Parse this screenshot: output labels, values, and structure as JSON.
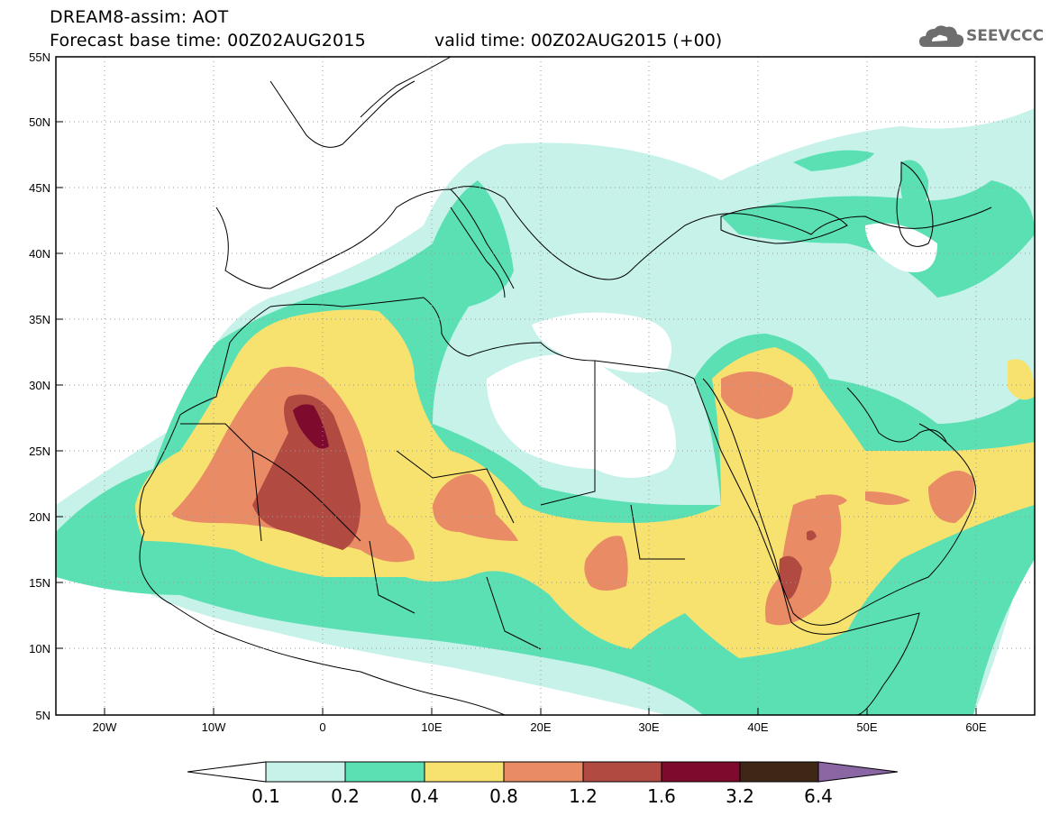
{
  "header": {
    "model_line": "DREAM8-assim: AOT",
    "base_time": "Forecast base time: 00Z02AUG2015",
    "valid_time": "valid time: 00Z02AUG2015 (+00)",
    "logo_text": "SEEVCCC"
  },
  "map": {
    "lon_range": [
      -25,
      65
    ],
    "lat_range": [
      5,
      55
    ],
    "lat_ticks": [
      "5N",
      "10N",
      "15N",
      "20N",
      "25N",
      "30N",
      "35N",
      "40N",
      "45N",
      "50N",
      "55N"
    ],
    "lon_ticks": [
      "20W",
      "10W",
      "0",
      "10E",
      "20E",
      "30E",
      "40E",
      "50E",
      "60E"
    ],
    "grid": "dotted"
  },
  "colorbar": {
    "labels": [
      "0.1",
      "0.2",
      "0.4",
      "0.8",
      "1.2",
      "1.6",
      "3.2",
      "6.4"
    ],
    "colors": [
      "#ffffff",
      "#c6f2ea",
      "#5be0b4",
      "#f7e270",
      "#e98b65",
      "#b14a41",
      "#7e0a2e",
      "#3f2717",
      "#8a67a3"
    ]
  }
}
